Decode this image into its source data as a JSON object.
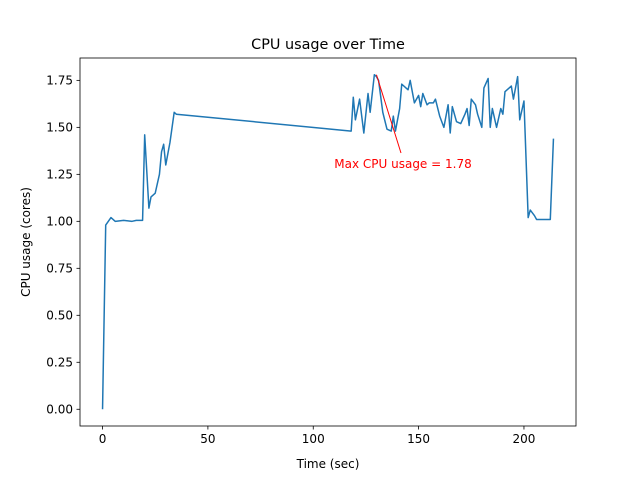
{
  "chart_data": {
    "type": "line",
    "title": "CPU usage over Time",
    "x_label": "Time (sec)",
    "y_label": "CPU usage (cores)",
    "x": [
      0,
      1.5,
      4,
      6,
      10,
      14,
      16,
      19,
      20,
      22,
      23,
      25,
      27,
      28,
      29,
      30,
      32,
      34,
      35,
      118,
      119,
      120,
      122,
      124,
      126,
      127,
      129,
      130,
      131,
      133,
      135,
      137,
      138,
      139,
      141,
      142,
      144,
      145,
      146,
      148,
      150,
      151,
      152,
      154,
      155,
      157,
      158,
      160,
      162,
      164,
      165,
      166,
      168,
      170,
      172,
      173,
      174,
      175,
      177,
      178,
      180,
      181,
      183,
      184,
      185,
      187,
      189,
      190,
      191,
      192,
      194,
      195,
      197,
      198,
      200,
      202,
      203,
      205,
      206,
      208,
      210,
      212.5,
      214
    ],
    "series": [
      {
        "name": "CPU usage",
        "color": "#1f77b4",
        "values": [
          0,
          0.98,
          1.02,
          1.0,
          1.005,
          1.0,
          1.005,
          1.005,
          1.46,
          1.07,
          1.13,
          1.15,
          1.25,
          1.37,
          1.41,
          1.3,
          1.42,
          1.58,
          1.57,
          1.48,
          1.66,
          1.54,
          1.65,
          1.47,
          1.68,
          1.58,
          1.78,
          1.77,
          1.75,
          1.58,
          1.49,
          1.48,
          1.56,
          1.48,
          1.6,
          1.73,
          1.71,
          1.7,
          1.75,
          1.63,
          1.67,
          1.61,
          1.68,
          1.62,
          1.63,
          1.63,
          1.65,
          1.56,
          1.5,
          1.62,
          1.47,
          1.61,
          1.53,
          1.52,
          1.57,
          1.6,
          1.51,
          1.65,
          1.62,
          1.57,
          1.5,
          1.71,
          1.76,
          1.5,
          1.6,
          1.5,
          1.6,
          1.57,
          1.69,
          1.7,
          1.72,
          1.65,
          1.77,
          1.54,
          1.64,
          1.02,
          1.06,
          1.03,
          1.01,
          1.01,
          1.01,
          1.01,
          1.44
        ]
      }
    ],
    "annotation": {
      "text": "Max CPU usage = 1.78",
      "x": 130,
      "y": 1.78,
      "color": "#ff0000"
    },
    "xlim": [
      -10.7,
      224.7
    ],
    "ylim": [
      -0.089,
      1.869
    ],
    "xticks": [
      0,
      50,
      100,
      150,
      200
    ],
    "yticks": [
      {
        "value": 0,
        "label": "0.00"
      },
      {
        "value": 0.25,
        "label": "0.25"
      },
      {
        "value": 0.5,
        "label": "0.50"
      },
      {
        "value": 0.75,
        "label": "0.75"
      },
      {
        "value": 1,
        "label": "1.00"
      },
      {
        "value": 1.25,
        "label": "1.25"
      },
      {
        "value": 1.5,
        "label": "1.50"
      },
      {
        "value": 1.75,
        "label": "1.75"
      }
    ]
  }
}
